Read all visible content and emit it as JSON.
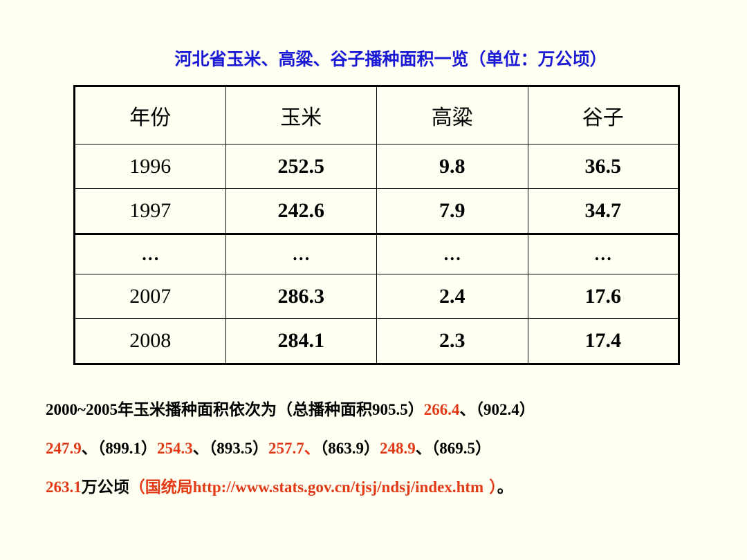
{
  "title": "河北省玉米、高粱、谷子播种面积一览（单位：万公顷）",
  "table": {
    "headers": [
      "年份",
      "玉米",
      "高粱",
      "谷子"
    ],
    "rows": [
      [
        "1996",
        "252.5",
        "9.8",
        "36.5"
      ],
      [
        "1997",
        "242.6",
        "7.9",
        "34.7"
      ],
      [
        "…",
        "…",
        "…",
        "…"
      ],
      [
        "2007",
        "286.3",
        "2.4",
        "17.6"
      ],
      [
        "2008",
        "284.1",
        "2.3",
        "17.4"
      ]
    ]
  },
  "note": {
    "line1_a": "2000~2005",
    "line1_b": "年玉米播种面积依次为（总播种面积",
    "line1_c": "905.5",
    "line1_d": "）",
    "v1": "266.4",
    "sep1": "、（",
    "t2": "902.4",
    "close2": "）",
    "v2": "247.9",
    "sep2": "、（",
    "t3": "899.1",
    "close3": "）",
    "v3": "254.3",
    "sep3": "、（",
    "t4": "893.5",
    "close4": "）",
    "v4": "257.7",
    "sep4": "、",
    "open5": "（",
    "t5": "863.9",
    "close5": "）",
    "v5": "248.9",
    "sep5": "、（",
    "t6": "869.5",
    "close6": "）",
    "v6": "263.1",
    "unit": "万公顷",
    "src_open": "（国统局",
    "src_url": "http://www.stats.gov.cn/tjsj/ndsj/index.htm",
    "src_close": " ）",
    "end": "。"
  },
  "colors": {
    "title": "#1A1AD6",
    "highlight": "#E23A16",
    "background": "#FFFFF2"
  }
}
